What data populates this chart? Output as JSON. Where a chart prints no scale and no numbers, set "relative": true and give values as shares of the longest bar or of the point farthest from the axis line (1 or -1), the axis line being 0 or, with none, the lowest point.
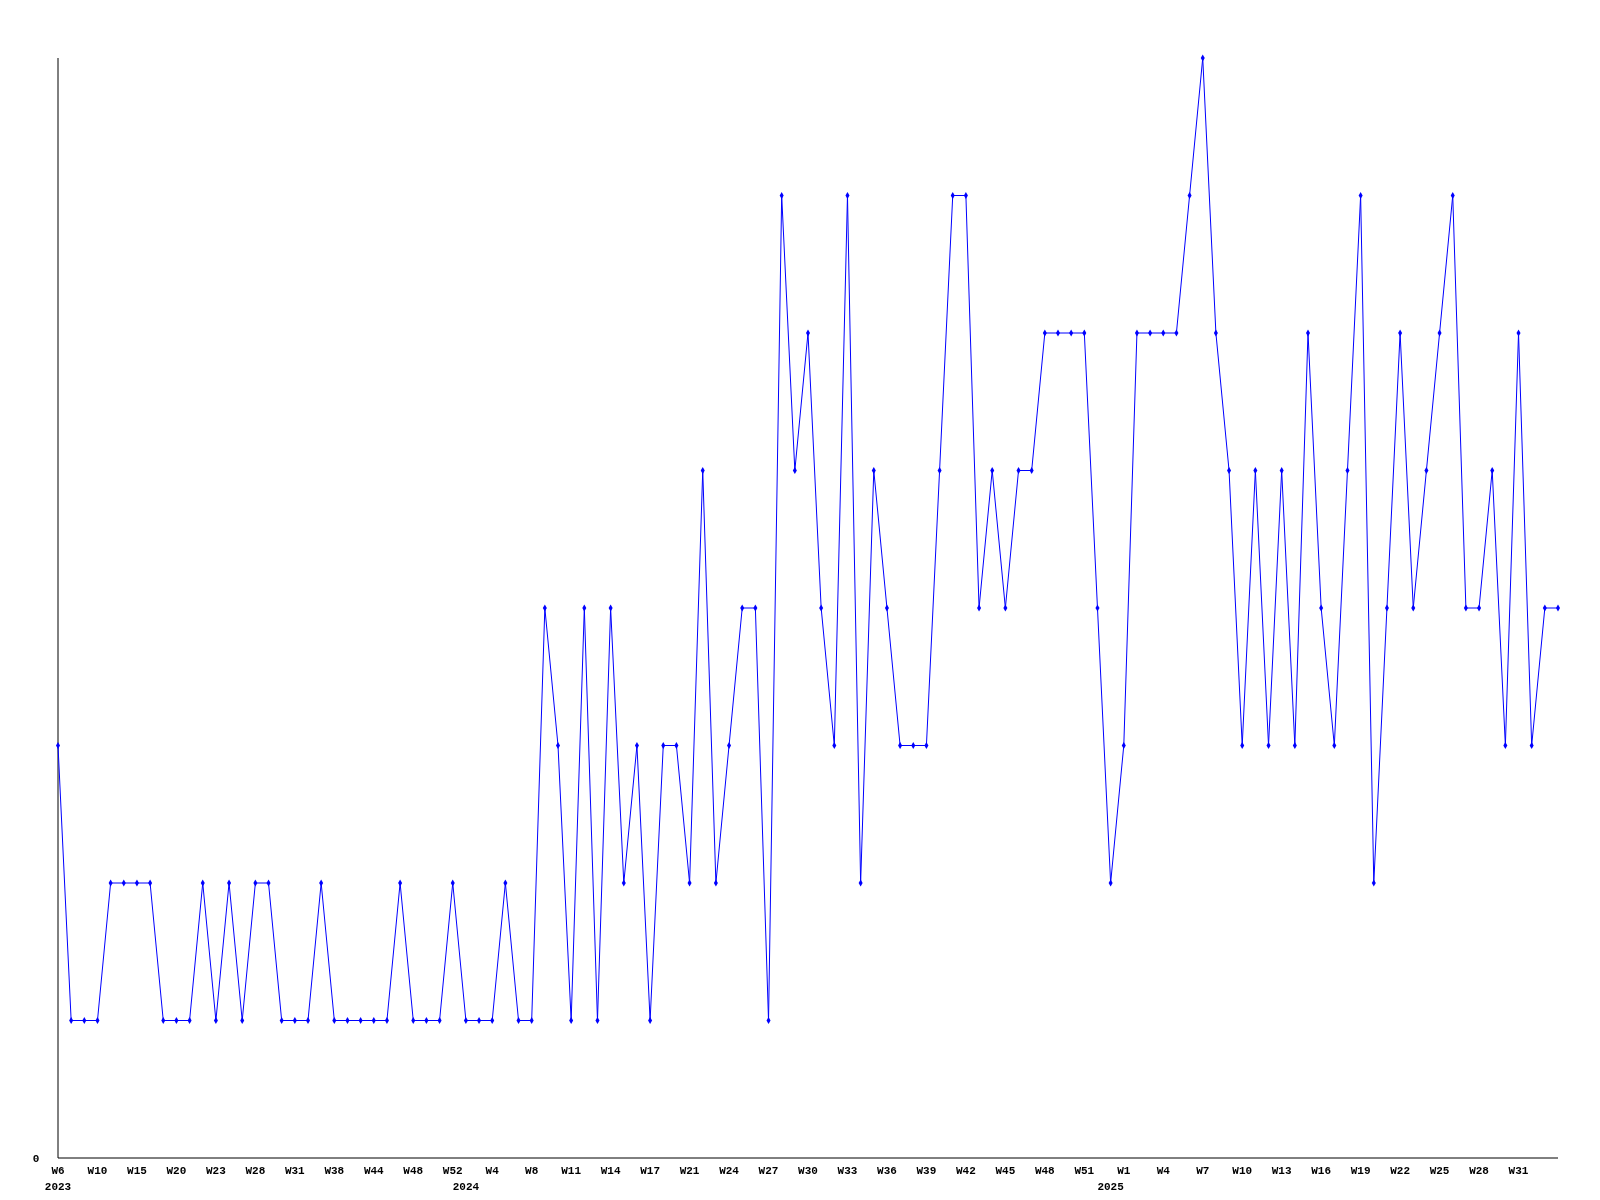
{
  "chart_data": {
    "type": "line",
    "relative": true,
    "marker": "diamond",
    "line_style": "solid",
    "annotations": [
      "0"
    ],
    "categories": [
      "W6\n2023",
      null,
      null,
      "W10",
      null,
      null,
      "W15",
      null,
      null,
      "W20",
      null,
      null,
      "W23",
      null,
      null,
      "W28",
      null,
      null,
      "W31",
      null,
      null,
      "W38",
      null,
      null,
      "W44",
      null,
      null,
      "W48",
      null,
      null,
      "W52",
      "\n2024",
      null,
      "W4",
      null,
      null,
      "W8",
      null,
      null,
      "W11",
      null,
      null,
      "W14",
      null,
      null,
      "W17",
      null,
      null,
      "W21",
      null,
      null,
      "W24",
      null,
      null,
      "W27",
      null,
      null,
      "W30",
      null,
      null,
      "W33",
      null,
      null,
      "W36",
      null,
      null,
      "W39",
      null,
      null,
      "W42",
      null,
      null,
      "W45",
      null,
      null,
      "W48",
      null,
      null,
      "W51",
      null,
      "\n2025",
      "W1",
      null,
      null,
      "W4",
      null,
      null,
      "W7",
      null,
      null,
      "W10",
      null,
      null,
      "W13",
      null,
      null,
      "W16",
      null,
      null,
      "W19",
      null,
      null,
      "W22",
      null,
      null,
      "W25",
      null,
      null,
      "W28",
      null,
      null,
      "W31",
      null,
      null,
      null
    ],
    "series": [
      {
        "color": "#0000ff",
        "values": [
          0.375,
          0.125,
          0.125,
          0.125,
          0.25,
          0.25,
          0.25,
          0.25,
          0.125,
          0.125,
          0.125,
          0.25,
          0.125,
          0.25,
          0.125,
          0.25,
          0.25,
          0.125,
          0.125,
          0.125,
          0.25,
          0.125,
          0.125,
          0.125,
          0.125,
          0.125,
          0.25,
          0.125,
          0.125,
          0.125,
          0.25,
          0.125,
          0.125,
          0.125,
          0.25,
          0.125,
          0.125,
          0.5,
          0.375,
          0.125,
          0.5,
          0.125,
          0.5,
          0.25,
          0.375,
          0.125,
          0.375,
          0.375,
          0.25,
          0.625,
          0.25,
          0.375,
          0.5,
          0.5,
          0.125,
          0.875,
          0.625,
          0.75,
          0.5,
          0.375,
          0.875,
          0.25,
          0.625,
          0.5,
          0.375,
          0.375,
          0.375,
          0.625,
          0.875,
          0.875,
          0.5,
          0.625,
          0.5,
          0.625,
          0.625,
          0.75,
          0.75,
          0.75,
          0.75,
          0.5,
          0.25,
          0.375,
          0.75,
          0.75,
          0.75,
          0.75,
          0.875,
          1,
          0.75,
          0.625,
          0.375,
          0.625,
          0.375,
          0.625,
          0.375,
          0.75,
          0.5,
          0.375,
          0.625,
          0.875,
          0.25,
          0.5,
          0.75,
          0.5,
          0.625,
          0.75,
          0.875,
          0.5,
          0.5,
          0.625,
          0.375,
          0.75,
          0.375,
          0.5,
          0.5
        ]
      }
    ]
  }
}
